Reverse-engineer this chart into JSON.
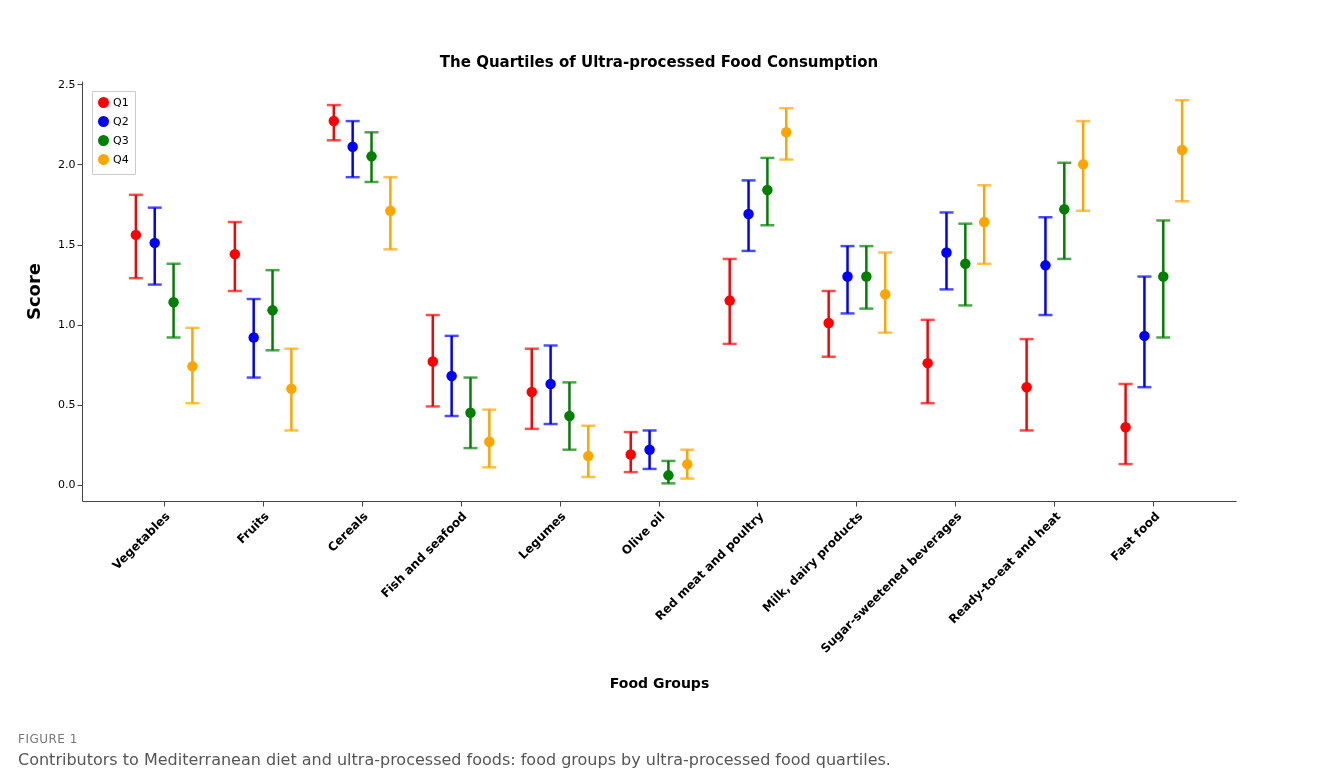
{
  "chart_data": {
    "type": "scatter",
    "title": "The Quartiles of Ultra-processed Food Consumption",
    "xlabel": "Food Groups",
    "ylabel": "Score",
    "categories": [
      "Vegetables",
      "Fruits",
      "Cereals",
      "Fish and seafood",
      "Legumes",
      "Olive oil",
      "Red meat and poultry",
      "Milk, dairy products",
      "Sugar-sweetened beverages",
      "Ready-to-eat and heat",
      "Fast food"
    ],
    "series": [
      {
        "name": "Q1",
        "color": "#ff0000",
        "values": [
          1.56,
          1.44,
          2.27,
          0.77,
          0.58,
          0.19,
          1.15,
          1.01,
          0.76,
          0.61,
          0.36
        ],
        "errors": [
          [
            1.29,
            1.81
          ],
          [
            1.21,
            1.64
          ],
          [
            2.15,
            2.37
          ],
          [
            0.49,
            1.06
          ],
          [
            0.35,
            0.85
          ],
          [
            0.08,
            0.33
          ],
          [
            0.88,
            1.41
          ],
          [
            0.8,
            1.21
          ],
          [
            0.51,
            1.03
          ],
          [
            0.34,
            0.91
          ],
          [
            0.13,
            0.63
          ]
        ]
      },
      {
        "name": "Q2",
        "color": "#0000ff",
        "values": [
          1.51,
          0.92,
          2.11,
          0.68,
          0.63,
          0.22,
          1.69,
          1.3,
          1.45,
          1.37,
          0.93
        ],
        "errors": [
          [
            1.25,
            1.73
          ],
          [
            0.67,
            1.16
          ],
          [
            1.92,
            2.27
          ],
          [
            0.43,
            0.93
          ],
          [
            0.38,
            0.87
          ],
          [
            0.1,
            0.34
          ],
          [
            1.46,
            1.9
          ],
          [
            1.07,
            1.49
          ],
          [
            1.22,
            1.7
          ],
          [
            1.06,
            1.67
          ],
          [
            0.61,
            1.3
          ]
        ]
      },
      {
        "name": "Q3",
        "color": "#007f00",
        "values": [
          1.14,
          1.09,
          2.05,
          0.45,
          0.43,
          0.06,
          1.84,
          1.3,
          1.38,
          1.72,
          1.3
        ],
        "errors": [
          [
            0.92,
            1.38
          ],
          [
            0.84,
            1.34
          ],
          [
            1.89,
            2.2
          ],
          [
            0.23,
            0.67
          ],
          [
            0.22,
            0.64
          ],
          [
            0.01,
            0.15
          ],
          [
            1.62,
            2.04
          ],
          [
            1.1,
            1.49
          ],
          [
            1.12,
            1.63
          ],
          [
            1.41,
            2.01
          ],
          [
            0.92,
            1.65
          ]
        ]
      },
      {
        "name": "Q4",
        "color": "#ffa500",
        "values": [
          0.74,
          0.6,
          1.71,
          0.27,
          0.18,
          0.13,
          2.2,
          1.19,
          1.64,
          2.0,
          2.09
        ],
        "errors": [
          [
            0.51,
            0.98
          ],
          [
            0.34,
            0.85
          ],
          [
            1.47,
            1.92
          ],
          [
            0.11,
            0.47
          ],
          [
            0.05,
            0.37
          ],
          [
            0.04,
            0.22
          ],
          [
            2.03,
            2.35
          ],
          [
            0.95,
            1.45
          ],
          [
            1.38,
            1.87
          ],
          [
            1.71,
            2.27
          ],
          [
            1.77,
            2.4
          ]
        ]
      }
    ],
    "ylim": [
      -0.1,
      2.52
    ],
    "yticks": [
      {
        "value": 0,
        "label": "0.0"
      },
      0.5,
      {
        "value": 1,
        "label": "1.0"
      },
      1.5,
      {
        "value": 2,
        "label": "2.0"
      },
      2.5
    ],
    "legend": "top left",
    "marker": "circle",
    "annotations": [
      "FIGURE 1",
      "Contributors to Mediterranean diet and ultra-processed foods: food groups by ultra-processed food quartiles."
    ]
  }
}
